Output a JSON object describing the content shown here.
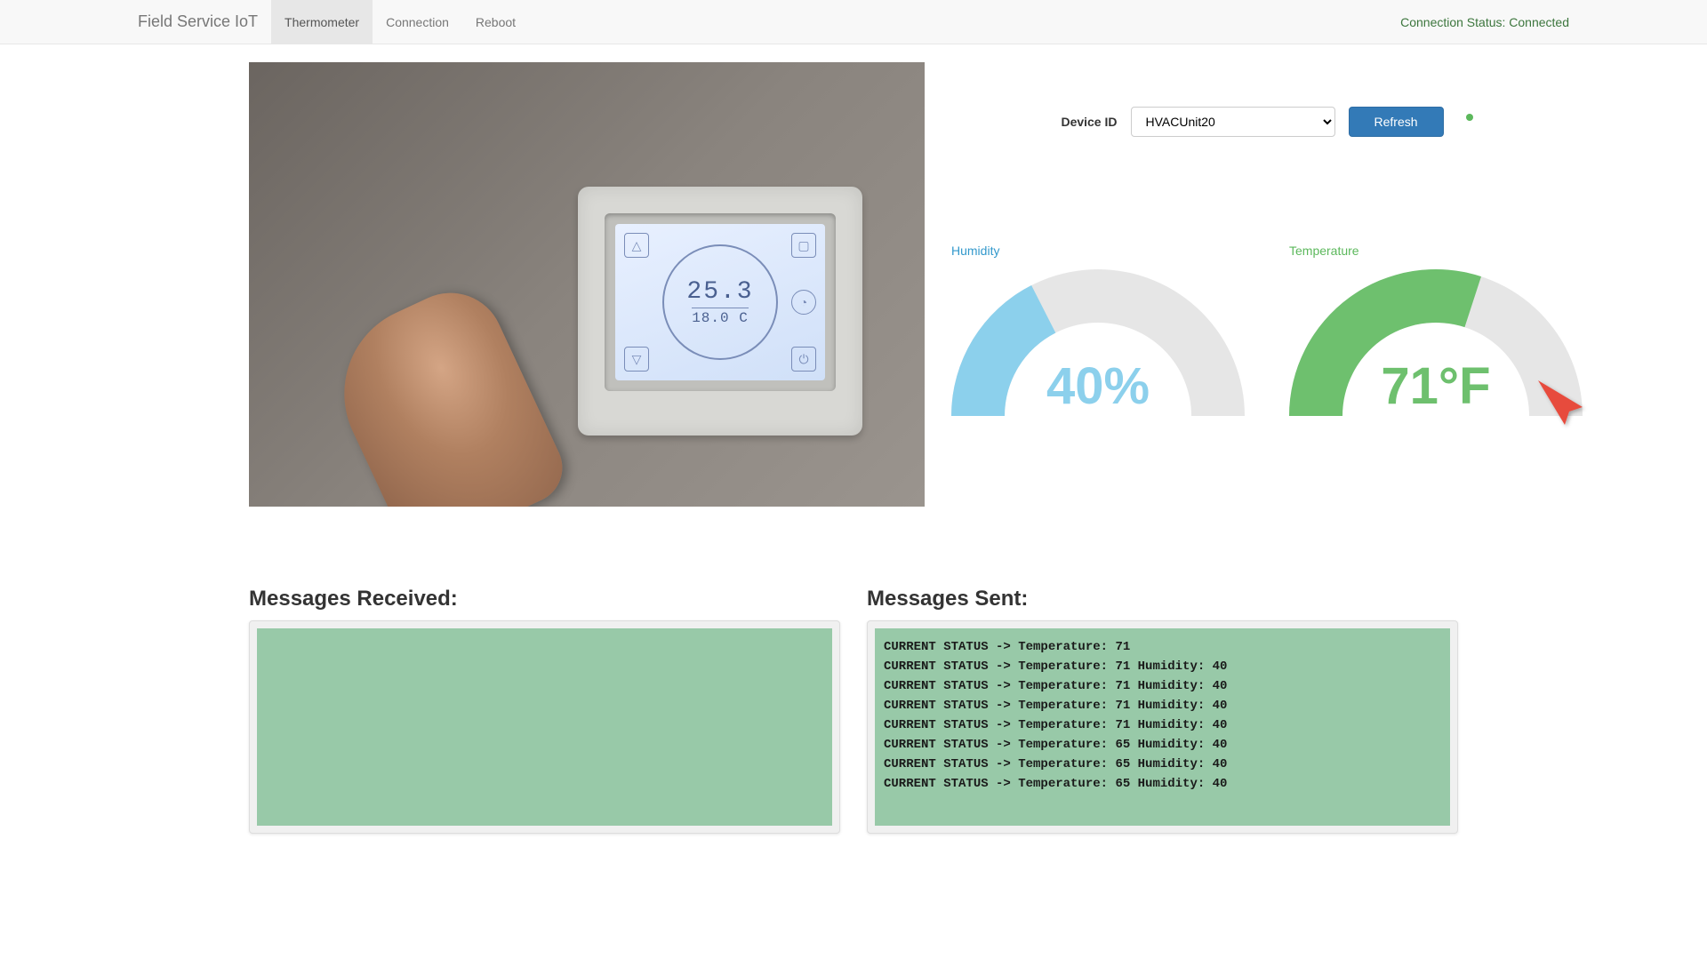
{
  "navbar": {
    "brand": "Field Service IoT",
    "tabs": [
      {
        "label": "Thermometer",
        "active": true
      },
      {
        "label": "Connection",
        "active": false
      },
      {
        "label": "Reboot",
        "active": false
      }
    ],
    "status_label": "Connection Status: Connected",
    "status_color": "#3c763d"
  },
  "thermostat_image": {
    "display_main": "25.3",
    "display_main_unit": "°C",
    "display_sub": "18.0  C"
  },
  "controls": {
    "device_id_label": "Device ID",
    "device_id_value": "HVACUnit20",
    "refresh_label": "Refresh",
    "indicator_color": "#5cb85c"
  },
  "gauges": {
    "humidity": {
      "label": "Humidity",
      "label_color": "#3399cc",
      "value": 40,
      "display": "40%",
      "fill_color": "#8cd0ec",
      "track_color": "#e6e6e6",
      "ratio": 0.35
    },
    "temperature": {
      "label": "Temperature",
      "label_color": "#5cb85c",
      "value": 71,
      "display": "71°F",
      "fill_color": "#6ec06e",
      "track_color": "#e6e6e6",
      "ratio": 0.6
    }
  },
  "arrow": {
    "color": "#e74c3c"
  },
  "messages": {
    "received_header": "Messages Received:",
    "sent_header": "Messages Sent:",
    "received": [],
    "sent": [
      "CURRENT STATUS -> Temperature: 71",
      "CURRENT STATUS -> Temperature: 71 Humidity: 40",
      "CURRENT STATUS -> Temperature: 71 Humidity: 40",
      "CURRENT STATUS -> Temperature: 71 Humidity: 40",
      "CURRENT STATUS -> Temperature: 71 Humidity: 40",
      "CURRENT STATUS -> Temperature: 65 Humidity: 40",
      "CURRENT STATUS -> Temperature: 65 Humidity: 40",
      "CURRENT STATUS -> Temperature: 65 Humidity: 40"
    ]
  },
  "colors": {
    "navbar_bg": "#f8f8f8",
    "primary_btn": "#337ab7",
    "msg_panel_bg": "#98c9a8"
  }
}
